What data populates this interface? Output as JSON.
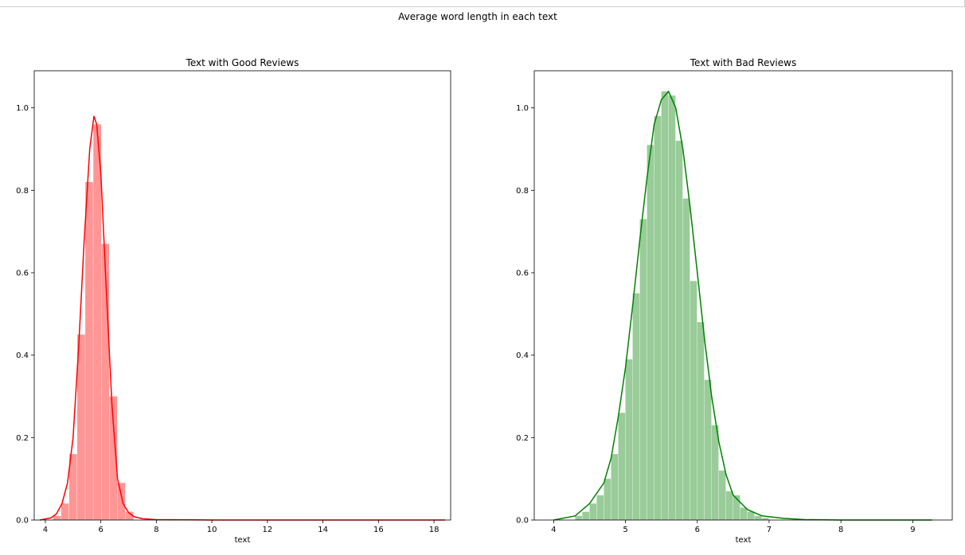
{
  "suptitle": "Average word length in each text",
  "chart_data": [
    {
      "type": "bar",
      "title": "Text with Good Reviews",
      "xlabel": "text",
      "ylabel": "",
      "xlim": [
        3.6,
        18.6
      ],
      "ylim": [
        0,
        1.09
      ],
      "xticks": [
        4,
        6,
        8,
        10,
        12,
        14,
        16,
        18
      ],
      "xtick_labels": [
        "4",
        "6",
        "8",
        "10",
        "12",
        "14",
        "16",
        "18"
      ],
      "yticks": [
        0.0,
        0.2,
        0.4,
        0.6,
        0.8,
        1.0
      ],
      "ytick_labels": [
        "0.0",
        "0.2",
        "0.4",
        "0.6",
        "0.8",
        "1.0"
      ],
      "color": "#ff0000",
      "bar_color": "#ff9595",
      "bin_width": 0.29,
      "histogram": {
        "bin_left": [
          4.28,
          4.57,
          4.86,
          5.15,
          5.44,
          5.73,
          6.02,
          6.31,
          6.6,
          6.89
        ],
        "density": [
          0.01,
          0.04,
          0.16,
          0.45,
          0.82,
          0.96,
          0.67,
          0.3,
          0.09,
          0.02
        ]
      },
      "kde": {
        "x": [
          3.8,
          4.2,
          4.4,
          4.6,
          4.8,
          5.0,
          5.2,
          5.4,
          5.6,
          5.75,
          5.85,
          6.0,
          6.2,
          6.4,
          6.6,
          6.8,
          7.0,
          7.2,
          7.5,
          8.0,
          10.0,
          14.0,
          18.4
        ],
        "y": [
          0.0,
          0.005,
          0.015,
          0.04,
          0.09,
          0.2,
          0.42,
          0.68,
          0.9,
          0.98,
          0.96,
          0.84,
          0.55,
          0.28,
          0.1,
          0.04,
          0.018,
          0.008,
          0.003,
          0.001,
          0.0,
          0.0,
          0.0
        ]
      }
    },
    {
      "type": "bar",
      "title": "Text with Bad Reviews",
      "xlabel": "text",
      "ylabel": "",
      "xlim": [
        3.73,
        9.55
      ],
      "ylim": [
        0,
        1.09
      ],
      "xticks": [
        4,
        5,
        6,
        7,
        8,
        9
      ],
      "xtick_labels": [
        "4",
        "5",
        "6",
        "7",
        "8",
        "9"
      ],
      "yticks": [
        0.0,
        0.2,
        0.4,
        0.6,
        0.8,
        1.0
      ],
      "ytick_labels": [
        "0.0",
        "0.2",
        "0.4",
        "0.6",
        "0.8",
        "1.0"
      ],
      "color": "#008000",
      "bar_color": "#99cc99",
      "bin_width": 0.1,
      "histogram": {
        "bin_left": [
          4.3,
          4.4,
          4.5,
          4.6,
          4.7,
          4.8,
          4.9,
          5.0,
          5.1,
          5.2,
          5.3,
          5.4,
          5.5,
          5.6,
          5.7,
          5.8,
          5.9,
          6.0,
          6.1,
          6.2,
          6.3,
          6.4,
          6.5,
          6.6,
          6.7,
          6.8,
          6.9
        ],
        "density": [
          0.01,
          0.02,
          0.04,
          0.06,
          0.1,
          0.16,
          0.26,
          0.39,
          0.55,
          0.73,
          0.91,
          0.98,
          1.04,
          1.03,
          0.92,
          0.78,
          0.58,
          0.48,
          0.34,
          0.23,
          0.12,
          0.07,
          0.06,
          0.03,
          0.02,
          0.01,
          0.005
        ]
      },
      "kde": {
        "x": [
          4.0,
          4.3,
          4.5,
          4.7,
          4.8,
          4.9,
          5.0,
          5.1,
          5.2,
          5.3,
          5.4,
          5.5,
          5.6,
          5.7,
          5.8,
          5.9,
          6.0,
          6.1,
          6.2,
          6.3,
          6.4,
          6.5,
          6.7,
          6.9,
          7.2,
          7.5,
          8.0,
          8.5,
          9.27
        ],
        "y": [
          0.0,
          0.01,
          0.04,
          0.09,
          0.15,
          0.25,
          0.37,
          0.52,
          0.68,
          0.83,
          0.96,
          1.02,
          1.04,
          1.0,
          0.9,
          0.76,
          0.6,
          0.44,
          0.3,
          0.19,
          0.11,
          0.06,
          0.025,
          0.01,
          0.004,
          0.001,
          0.0,
          0.0,
          0.0
        ]
      }
    }
  ]
}
